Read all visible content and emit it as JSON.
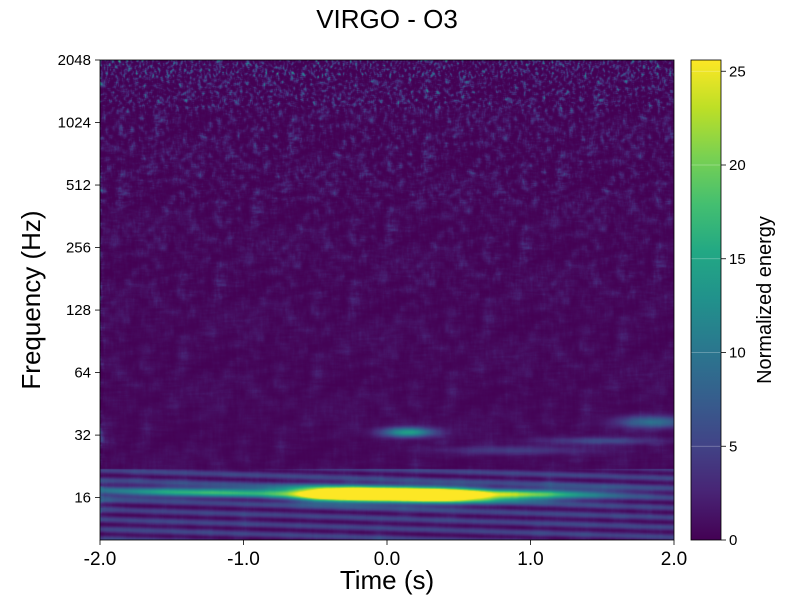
{
  "chart_data": {
    "type": "heatmap",
    "title": "VIRGO - O3",
    "xlabel": "Time (s)",
    "ylabel": "Frequency (Hz)",
    "colorbar_label": "Normalized energy",
    "xlim": [
      -2.0,
      2.0
    ],
    "ylim": [
      10,
      2048
    ],
    "yscale": "log2",
    "x_ticks": [
      -2.0,
      -1.0,
      0.0,
      1.0,
      2.0
    ],
    "x_tick_labels": [
      "-2.0",
      "-1.0",
      "0.0",
      "1.0",
      "2.0"
    ],
    "y_ticks": [
      16,
      32,
      64,
      128,
      256,
      512,
      1024,
      2048
    ],
    "y_tick_labels": [
      "16",
      "32",
      "64",
      "128",
      "256",
      "512",
      "1024",
      "2048"
    ],
    "colorbar_range": [
      0,
      25.6
    ],
    "colorbar_ticks": [
      0,
      5,
      10,
      15,
      20,
      25
    ],
    "colorbar_tick_labels": [
      "0",
      "5",
      "10",
      "15",
      "20",
      "25"
    ],
    "colormap": "viridis",
    "features": [
      {
        "t_start": -1.0,
        "t_end": 1.0,
        "f_center": 16.5,
        "peak_energy": 25.6
      },
      {
        "t_start": 0.0,
        "t_end": 0.3,
        "f_center": 33,
        "peak_energy": 14
      },
      {
        "t_start": 1.6,
        "t_end": 2.0,
        "f_center": 37,
        "peak_energy": 10
      }
    ]
  }
}
